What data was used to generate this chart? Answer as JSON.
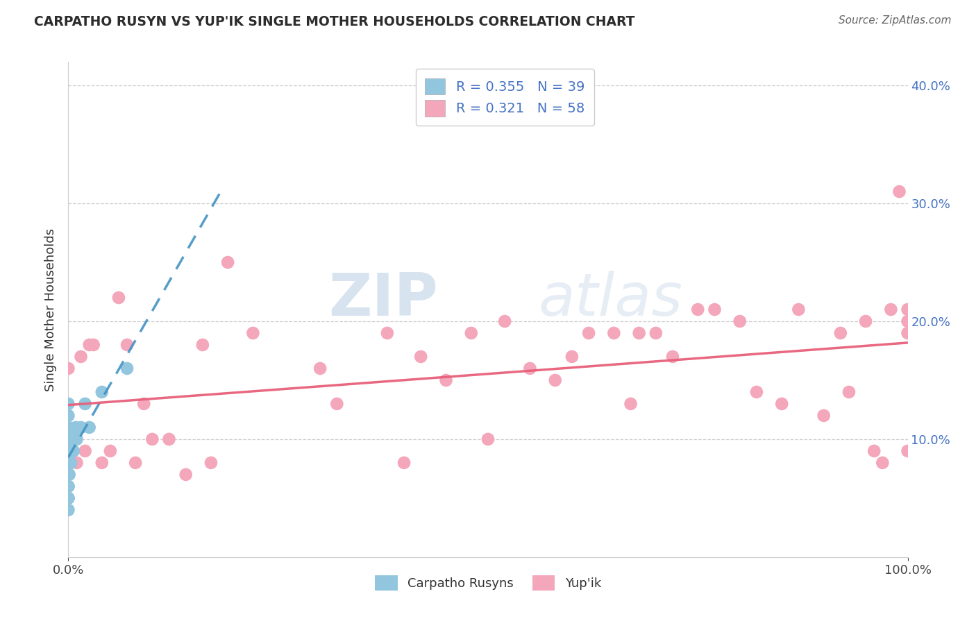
{
  "title": "CARPATHO RUSYN VS YUP'IK SINGLE MOTHER HOUSEHOLDS CORRELATION CHART",
  "source": "Source: ZipAtlas.com",
  "ylabel": "Single Mother Households",
  "legend_labels": [
    "Carpatho Rusyns",
    "Yup'ik"
  ],
  "carpatho_R": 0.355,
  "carpatho_N": 39,
  "yupik_R": 0.321,
  "yupik_N": 58,
  "carpatho_color": "#92c5de",
  "yupik_color": "#f4a6bb",
  "carpatho_line_color": "#4393c3",
  "yupik_line_color": "#e8607a",
  "background_color": "#ffffff",
  "watermark_zip": "ZIP",
  "watermark_atlas": "atlas",
  "xlim": [
    0.0,
    1.0
  ],
  "ylim": [
    0.0,
    0.42
  ],
  "carpatho_x": [
    0.0,
    0.0,
    0.0,
    0.0,
    0.0,
    0.0,
    0.0,
    0.0,
    0.0,
    0.0,
    0.0,
    0.0,
    0.0,
    0.0,
    0.0,
    0.0,
    0.0,
    0.0,
    0.0,
    0.0,
    0.001,
    0.001,
    0.001,
    0.001,
    0.002,
    0.002,
    0.003,
    0.003,
    0.004,
    0.005,
    0.006,
    0.007,
    0.009,
    0.01,
    0.015,
    0.02,
    0.025,
    0.04,
    0.07
  ],
  "carpatho_y": [
    0.04,
    0.05,
    0.05,
    0.06,
    0.06,
    0.07,
    0.07,
    0.07,
    0.08,
    0.08,
    0.08,
    0.09,
    0.09,
    0.1,
    0.1,
    0.1,
    0.11,
    0.11,
    0.12,
    0.13,
    0.07,
    0.08,
    0.09,
    0.1,
    0.08,
    0.09,
    0.08,
    0.09,
    0.09,
    0.1,
    0.09,
    0.1,
    0.11,
    0.1,
    0.11,
    0.13,
    0.11,
    0.14,
    0.16
  ],
  "yupik_x": [
    0.005,
    0.01,
    0.015,
    0.02,
    0.025,
    0.03,
    0.04,
    0.05,
    0.06,
    0.07,
    0.09,
    0.1,
    0.12,
    0.14,
    0.16,
    0.17,
    0.19,
    0.22,
    0.3,
    0.32,
    0.38,
    0.4,
    0.42,
    0.45,
    0.48,
    0.5,
    0.52,
    0.55,
    0.58,
    0.6,
    0.62,
    0.65,
    0.67,
    0.68,
    0.7,
    0.72,
    0.75,
    0.77,
    0.8,
    0.82,
    0.85,
    0.87,
    0.9,
    0.92,
    0.93,
    0.95,
    0.96,
    0.97,
    0.98,
    0.99,
    1.0,
    1.0,
    1.0,
    1.0,
    0.0,
    0.002,
    0.004,
    0.08
  ],
  "yupik_y": [
    0.1,
    0.08,
    0.17,
    0.09,
    0.18,
    0.18,
    0.08,
    0.09,
    0.22,
    0.18,
    0.13,
    0.1,
    0.1,
    0.07,
    0.18,
    0.08,
    0.25,
    0.19,
    0.16,
    0.13,
    0.19,
    0.08,
    0.17,
    0.15,
    0.19,
    0.1,
    0.2,
    0.16,
    0.15,
    0.17,
    0.19,
    0.19,
    0.13,
    0.19,
    0.19,
    0.17,
    0.21,
    0.21,
    0.2,
    0.14,
    0.13,
    0.21,
    0.12,
    0.19,
    0.14,
    0.2,
    0.09,
    0.08,
    0.21,
    0.31,
    0.21,
    0.19,
    0.09,
    0.2,
    0.16,
    0.1,
    0.09,
    0.08
  ]
}
